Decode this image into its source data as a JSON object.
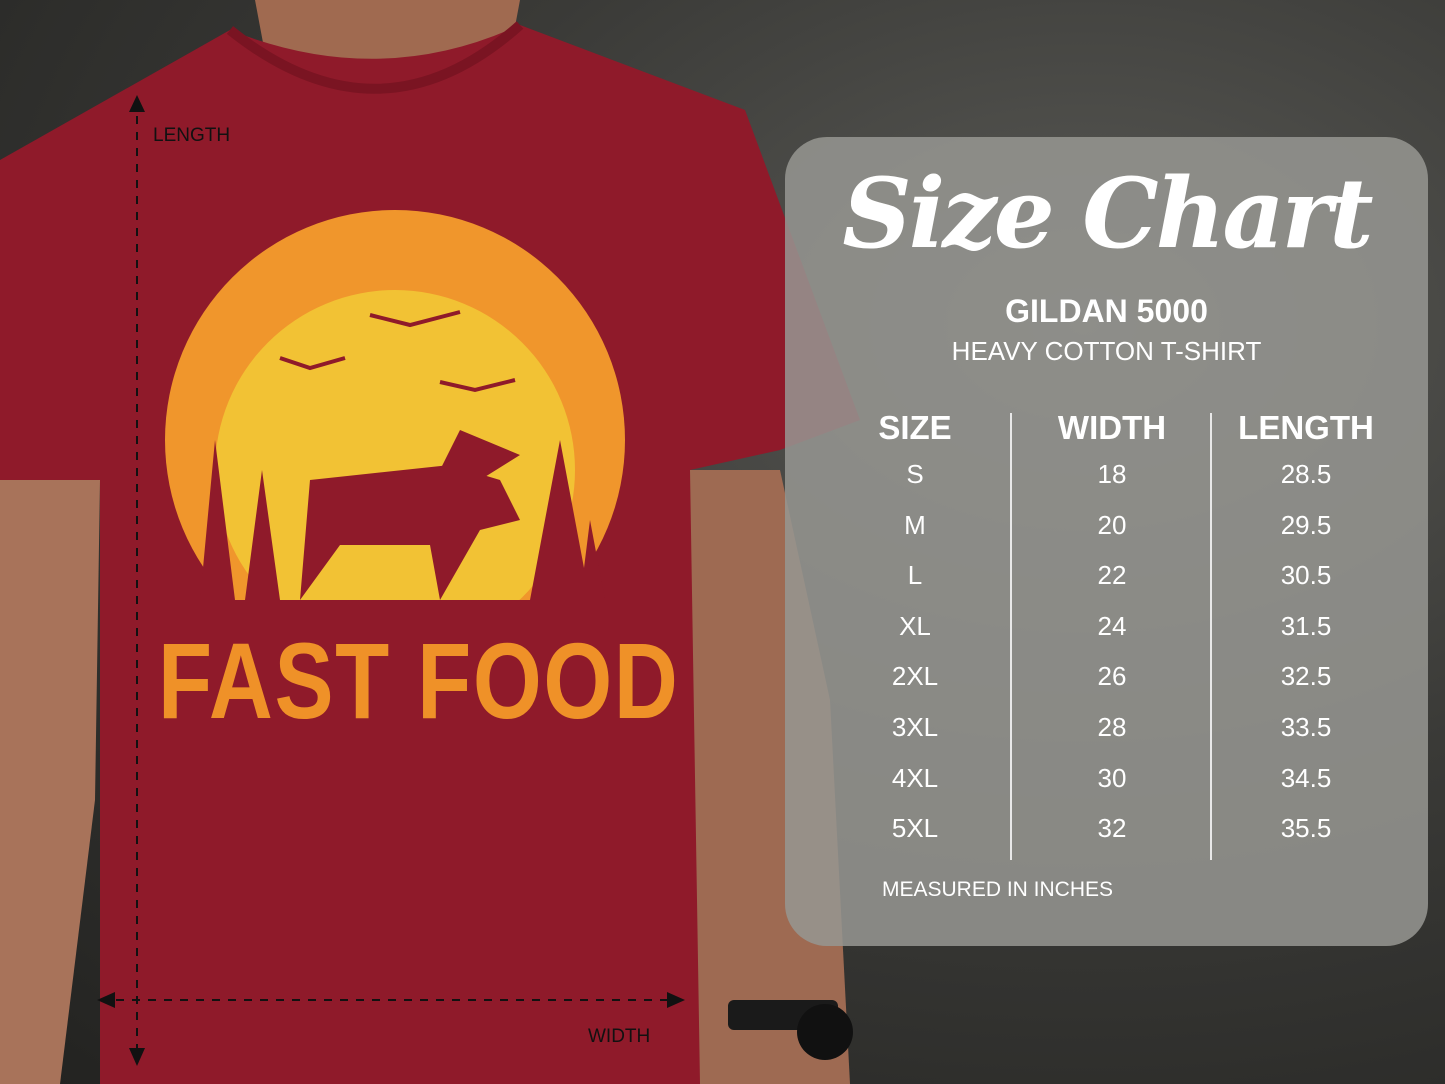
{
  "shirt": {
    "graphic_text": "FAST FOOD",
    "colors": {
      "shirt": "#8f1a2a",
      "moon_outer": "#f0962c",
      "moon_inner": "#f2c234",
      "text": "#ef9128"
    }
  },
  "measure_labels": {
    "length": "LENGTH",
    "width": "WIDTH"
  },
  "size_chart": {
    "title": "Size Chart",
    "brand": "GILDAN 5000",
    "subtitle": "HEAVY COTTON T-SHIRT",
    "headers": [
      "SIZE",
      "WIDTH",
      "LENGTH"
    ],
    "rows": [
      [
        "S",
        "18",
        "28.5"
      ],
      [
        "M",
        "20",
        "29.5"
      ],
      [
        "L",
        "22",
        "30.5"
      ],
      [
        "XL",
        "24",
        "31.5"
      ],
      [
        "2XL",
        "26",
        "32.5"
      ],
      [
        "3XL",
        "28",
        "33.5"
      ],
      [
        "4XL",
        "30",
        "34.5"
      ],
      [
        "5XL",
        "32",
        "35.5"
      ]
    ],
    "footnote": "MEASURED IN INCHES"
  }
}
